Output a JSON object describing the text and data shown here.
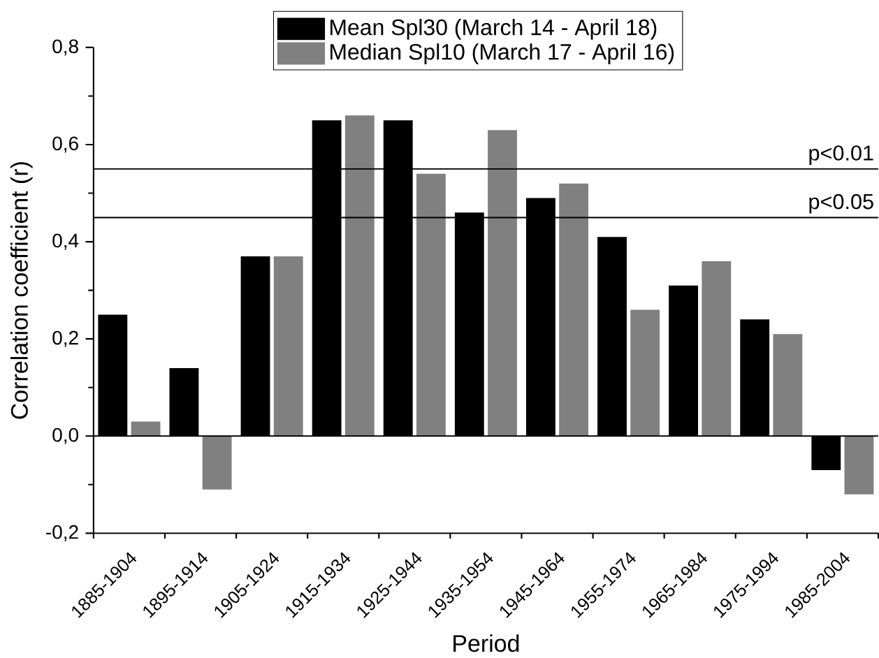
{
  "chart_data": {
    "type": "bar",
    "xlabel": "Period",
    "ylabel": "Correlation coefficient (r)",
    "categories": [
      "1885-1904",
      "1895-1914",
      "1905-1924",
      "1915-1934",
      "1925-1944",
      "1935-1954",
      "1945-1964",
      "1955-1974",
      "1965-1984",
      "1975-1994",
      "1985-2004"
    ],
    "series": [
      {
        "name": "Mean Spl30 (March 14 - April 18)",
        "color": "#000000",
        "values": [
          0.25,
          0.14,
          0.37,
          0.65,
          0.65,
          0.46,
          0.49,
          0.41,
          0.31,
          0.24,
          -0.07
        ]
      },
      {
        "name": "Median Spl10 (March 17 - April 16)",
        "color": "#808080",
        "values": [
          0.03,
          -0.11,
          0.37,
          0.66,
          0.54,
          0.63,
          0.52,
          0.26,
          0.36,
          0.21,
          -0.12
        ]
      }
    ],
    "ylim": [
      -0.2,
      0.8
    ],
    "yticks": [
      {
        "value": -0.2,
        "label": "-0,2"
      },
      {
        "value": 0.0,
        "label": "0,0"
      },
      {
        "value": 0.2,
        "label": "0,2"
      },
      {
        "value": 0.4,
        "label": "0,4"
      },
      {
        "value": 0.6,
        "label": "0,6"
      },
      {
        "value": 0.8,
        "label": "0,8"
      }
    ],
    "ref_lines": [
      {
        "axis": "y",
        "value": 0,
        "color": "#000000"
      },
      {
        "axis": "y",
        "value": 0.55,
        "label": "p<0.01",
        "color": "#000000"
      },
      {
        "axis": "y",
        "value": 0.45,
        "label": "p<0.05",
        "color": "#000000"
      }
    ],
    "legend": "top"
  }
}
